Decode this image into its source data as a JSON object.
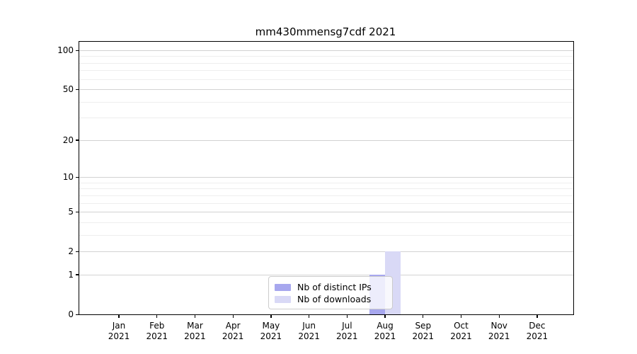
{
  "chart_data": {
    "type": "bar",
    "title": "mm430mmensg7cdf 2021",
    "x_tick_months": [
      "Jan",
      "Feb",
      "Mar",
      "Apr",
      "May",
      "Jun",
      "Jul",
      "Aug",
      "Sep",
      "Oct",
      "Nov",
      "Dec"
    ],
    "x_tick_year": "2021",
    "series": [
      {
        "name": "Nb of distinct IPs",
        "color": "#a7a7ee",
        "values": [
          0,
          0,
          0,
          0,
          0,
          0,
          0,
          1,
          0,
          0,
          0,
          0
        ]
      },
      {
        "name": "Nb of downloads",
        "color": "#d9d9f6",
        "values": [
          0,
          0,
          0,
          0,
          0,
          0,
          0,
          2,
          0,
          0,
          0,
          0
        ]
      }
    ],
    "y_axis": {
      "scale": "log1p",
      "range": [
        0,
        100
      ],
      "major_ticks": [
        0,
        1,
        2,
        5,
        10,
        20,
        50,
        100
      ],
      "minor_gridlines": [
        3,
        4,
        6,
        7,
        8,
        9,
        30,
        40,
        60,
        70,
        80,
        90
      ]
    },
    "grid": {
      "which": "both",
      "major_color": "#d2d2d2",
      "minor_color": "#eeeeee"
    },
    "legend": {
      "position": "lower-center-inside",
      "entries": [
        "Nb of distinct IPs",
        "Nb of downloads"
      ]
    },
    "axes": {
      "spine_color": "#000000",
      "background": "#ffffff"
    }
  }
}
